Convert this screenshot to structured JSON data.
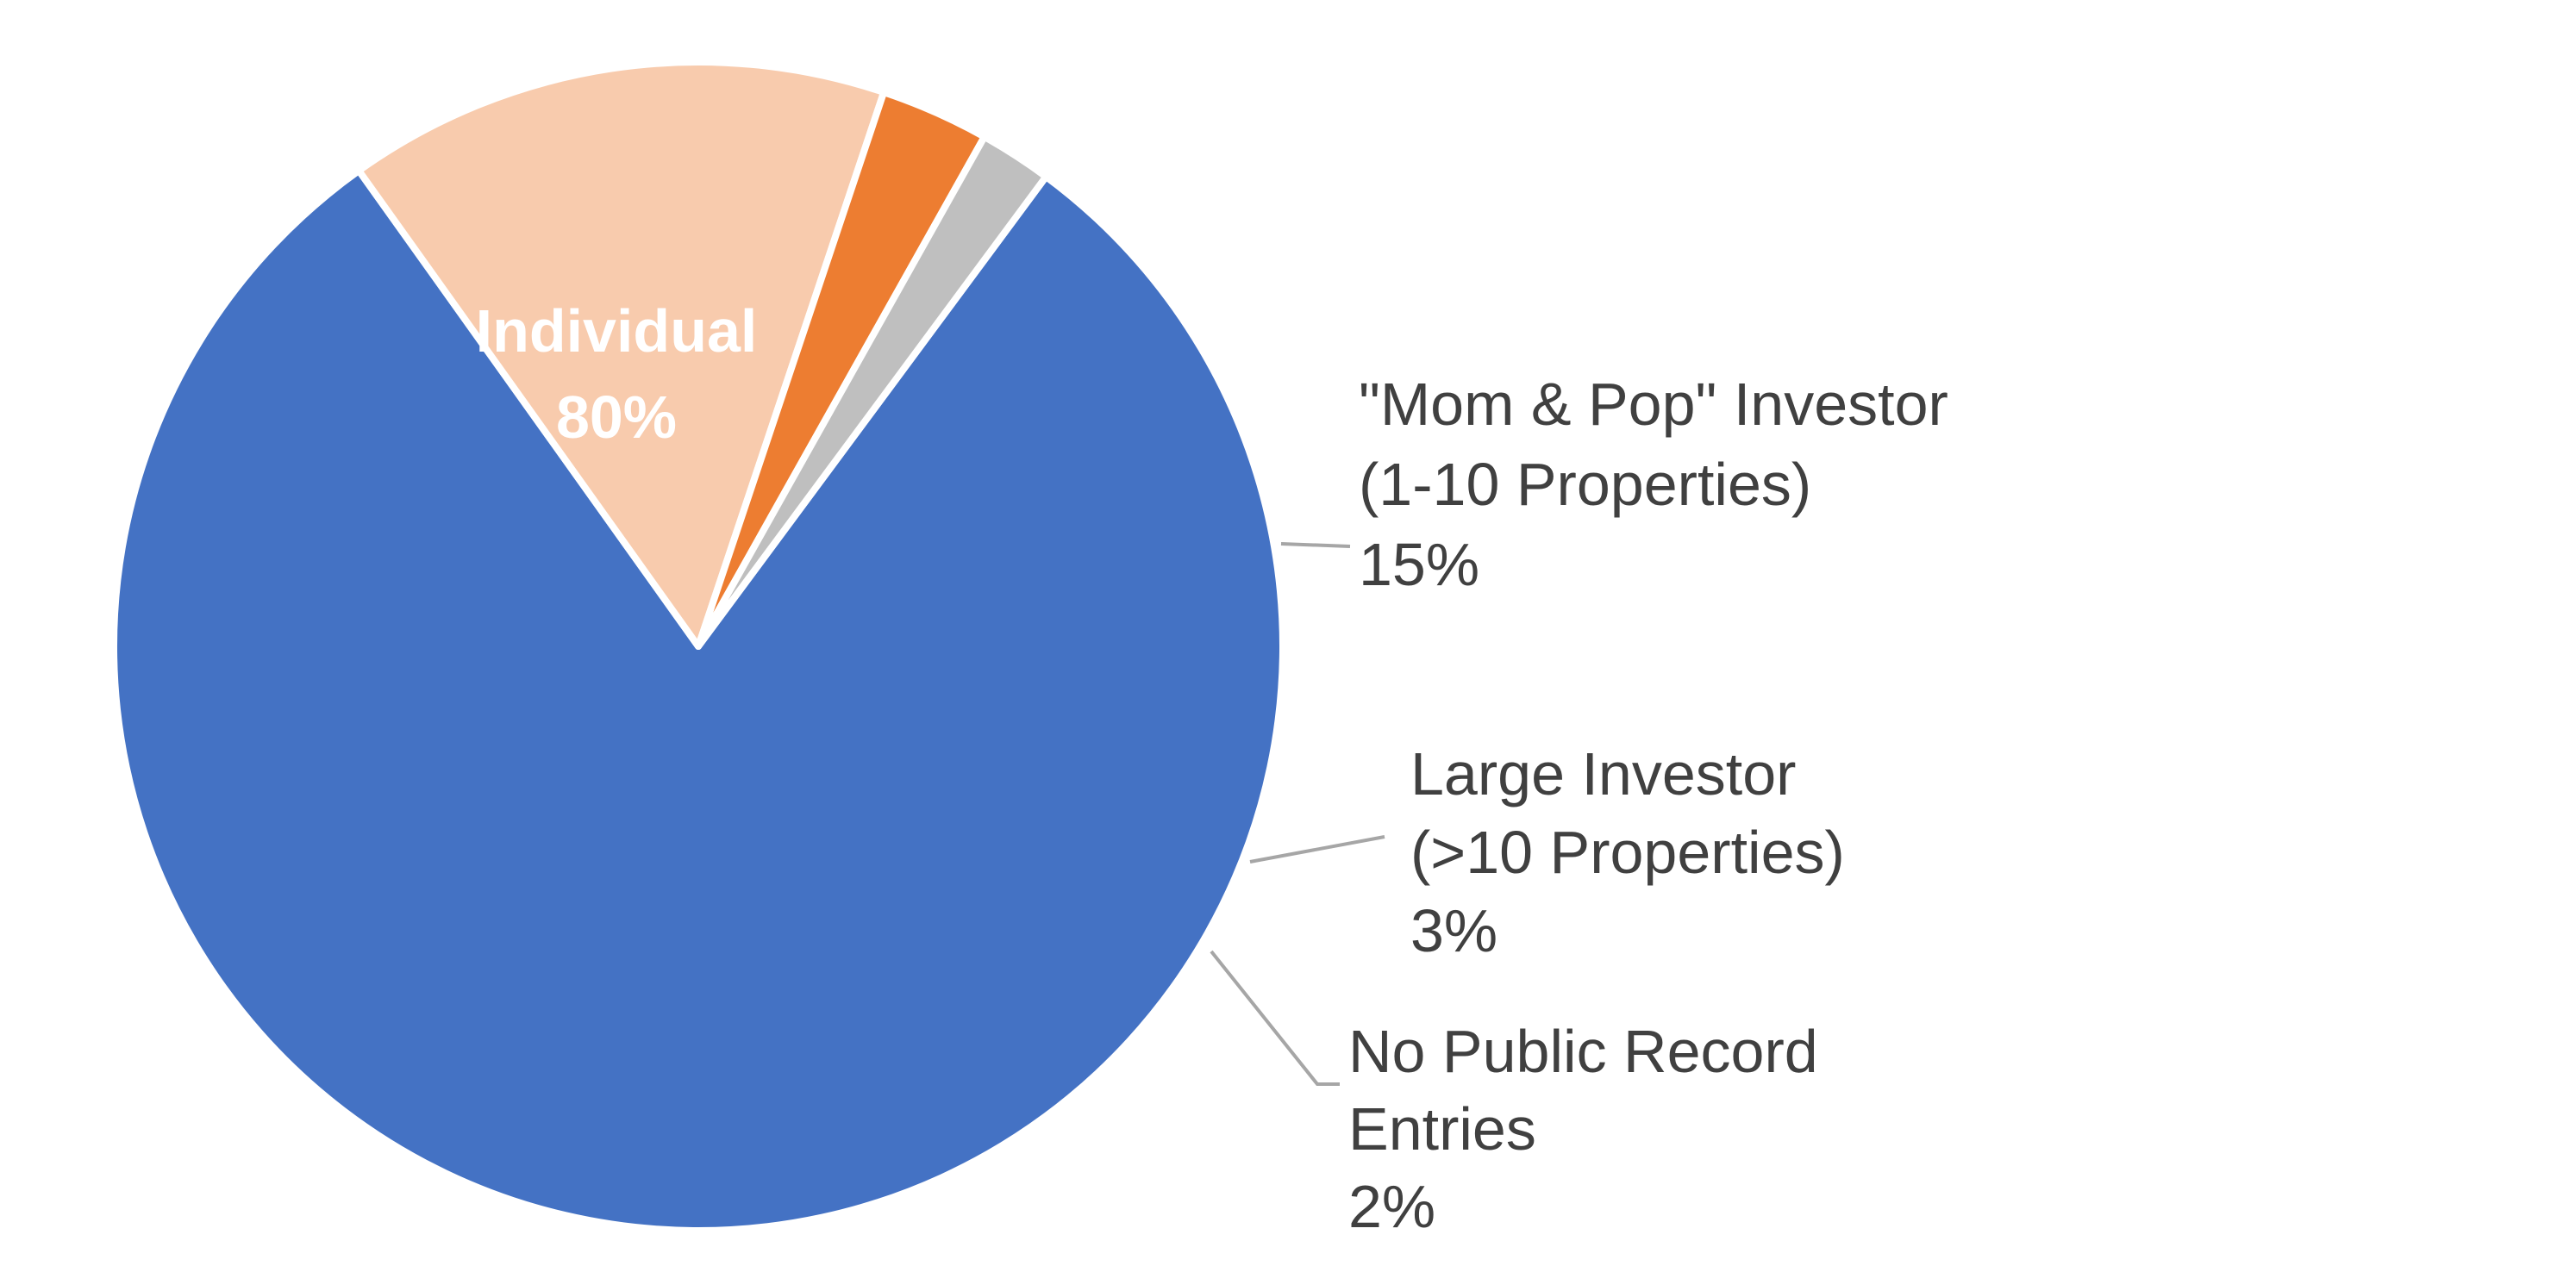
{
  "chart_data": {
    "type": "pie",
    "title": "",
    "start_angle_deg": 36.5,
    "direction": "clockwise",
    "slices": [
      {
        "label": "Individual",
        "label_lines": [
          "Individual"
        ],
        "value": 80,
        "value_label": "80%",
        "color": "#4472c4",
        "label_position": "inside"
      },
      {
        "label": "\"Mom & Pop\" Investor (1-10 Properties)",
        "label_lines": [
          "\"Mom & Pop\" Investor",
          "(1-10 Properties)"
        ],
        "value": 15,
        "value_label": "15%",
        "color": "#f8cbad",
        "label_position": "outside"
      },
      {
        "label": "Large Investor (>10 Properties)",
        "label_lines": [
          "Large Investor",
          "(>10 Properties)"
        ],
        "value": 3,
        "value_label": "3%",
        "color": "#ed7d31",
        "label_position": "outside"
      },
      {
        "label": "No Public Record Entries",
        "label_lines": [
          "No Public Record",
          "Entries"
        ],
        "value": 2,
        "value_label": "2%",
        "color": "#bfbfbf",
        "label_position": "outside"
      }
    ],
    "legend": "none"
  }
}
